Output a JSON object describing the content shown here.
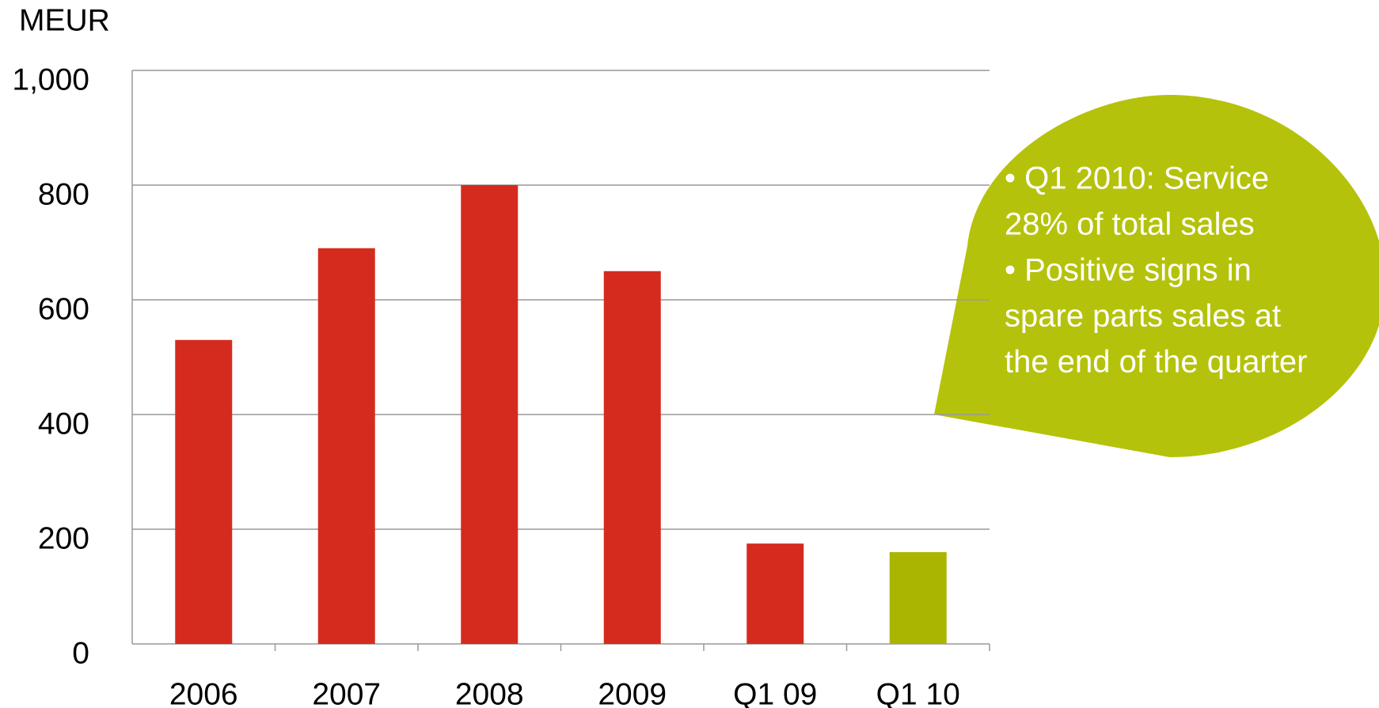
{
  "chart_data": {
    "type": "bar",
    "y_label": "MEUR",
    "categories": [
      "2006",
      "2007",
      "2008",
      "2009",
      "Q1 09",
      "Q1 10"
    ],
    "values": [
      530,
      690,
      800,
      650,
      175,
      160
    ],
    "colors": [
      "#d52b1e",
      "#d52b1e",
      "#d52b1e",
      "#d52b1e",
      "#d52b1e",
      "#a9b500"
    ],
    "ylim": [
      0,
      1000
    ],
    "yticks": [
      0,
      200,
      400,
      600,
      800,
      {
        "value": 1000,
        "label": "1,000"
      }
    ],
    "grid": true,
    "annotation": [
      "• Q1 2010: Service",
      "28% of total sales",
      "• Positive signs in",
      "spare parts sales at",
      "the end of the quarter"
    ]
  }
}
